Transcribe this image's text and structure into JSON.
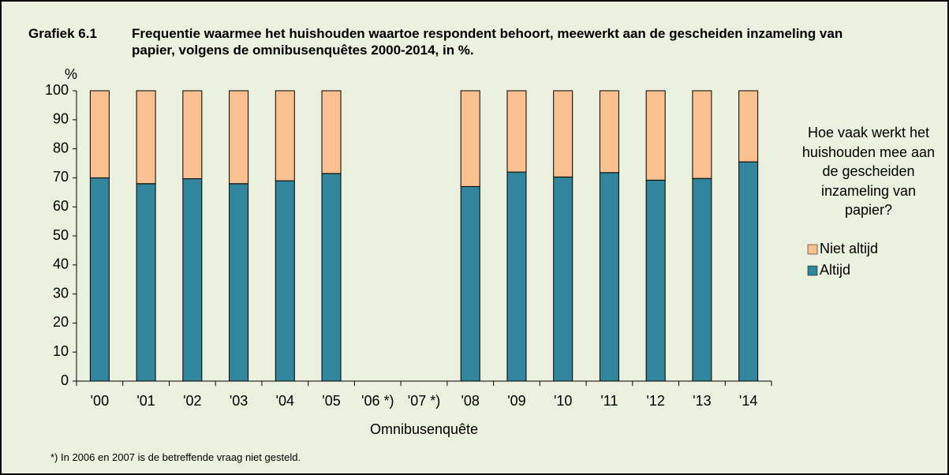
{
  "chart_data": {
    "type": "stacked_bar",
    "title_label": "Grafiek 6.1",
    "title": "Frequentie waarmee het huishouden waartoe respondent behoort, meewerkt aan de gescheiden inzameling van papier, volgens de omnibusenquêtes 2000-2014, in %.",
    "y_label": "%",
    "x_label": "Omnibusenquête",
    "footnote": "*) In 2006 en 2007 is de betreffende vraag niet gesteld.",
    "legend_title": "Hoe vaak werkt het huishouden mee aan de gescheiden inzameling van papier?",
    "categories": [
      "'00",
      "'01",
      "'02",
      "'03",
      "'04",
      "'05",
      "'06 *)",
      "'07 *)",
      "'08",
      "'09",
      "'10",
      "'11",
      "'12",
      "'13",
      "'14"
    ],
    "series": [
      {
        "name": "Altijd",
        "color": "#31859c",
        "values": [
          70,
          68,
          69.7,
          68,
          69,
          71.5,
          null,
          null,
          67,
          72,
          70.3,
          71.8,
          69.2,
          69.8,
          75.5
        ]
      },
      {
        "name": "Niet altijd",
        "color": "#fac090",
        "values": [
          30,
          32,
          30.3,
          32,
          31,
          28.5,
          null,
          null,
          33,
          28,
          29.7,
          28.2,
          30.8,
          30.2,
          24.5
        ]
      }
    ],
    "ylim": [
      0,
      100
    ],
    "yticks": [
      0,
      10,
      20,
      30,
      40,
      50,
      60,
      70,
      80,
      90,
      100
    ]
  }
}
